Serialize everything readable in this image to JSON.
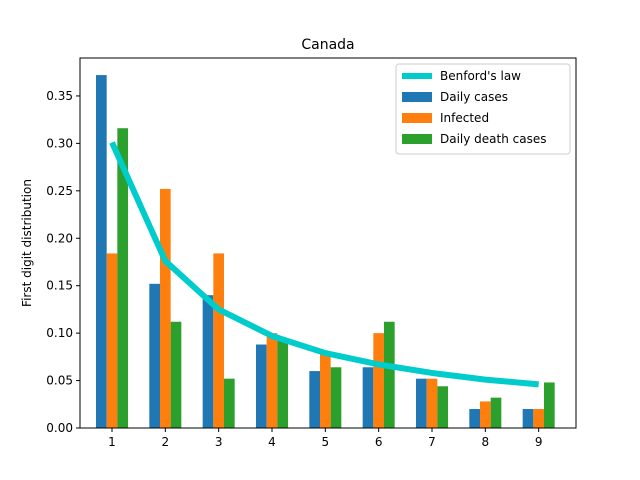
{
  "chart_data": {
    "type": "bar",
    "title": "Canada",
    "xlabel": "",
    "ylabel": "First digit distribution",
    "categories": [
      "1",
      "2",
      "3",
      "4",
      "5",
      "6",
      "7",
      "8",
      "9"
    ],
    "x": [
      1,
      2,
      3,
      4,
      5,
      6,
      7,
      8,
      9
    ],
    "xlim": [
      0.4,
      9.7
    ],
    "ylim": [
      0,
      0.39
    ],
    "yticks": [
      "0.00",
      "0.05",
      "0.10",
      "0.15",
      "0.20",
      "0.25",
      "0.30",
      "0.35"
    ],
    "legend_position": "top-right",
    "series": [
      {
        "name": "Daily cases",
        "color": "#1f77b4",
        "values": [
          0.372,
          0.152,
          0.14,
          0.088,
          0.06,
          0.064,
          0.052,
          0.02,
          0.02
        ]
      },
      {
        "name": "Infected",
        "color": "#ff7f0e",
        "values": [
          0.184,
          0.252,
          0.184,
          0.1,
          0.08,
          0.1,
          0.052,
          0.028,
          0.02
        ]
      },
      {
        "name": "Daily death cases",
        "color": "#2ca02c",
        "values": [
          0.316,
          0.112,
          0.052,
          0.092,
          0.064,
          0.112,
          0.044,
          0.032,
          0.048
        ]
      }
    ],
    "line_series": {
      "name": "Benford's law",
      "color": "#00cccc",
      "values": [
        0.301,
        0.176,
        0.125,
        0.097,
        0.079,
        0.067,
        0.058,
        0.051,
        0.046
      ]
    }
  }
}
